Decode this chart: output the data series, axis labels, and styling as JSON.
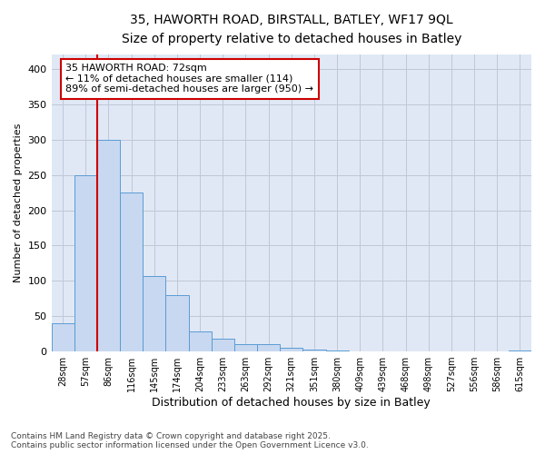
{
  "title_line1": "35, HAWORTH ROAD, BIRSTALL, BATLEY, WF17 9QL",
  "title_line2": "Size of property relative to detached houses in Batley",
  "xlabel": "Distribution of detached houses by size in Batley",
  "ylabel": "Number of detached properties",
  "categories": [
    "28sqm",
    "57sqm",
    "86sqm",
    "116sqm",
    "145sqm",
    "174sqm",
    "204sqm",
    "233sqm",
    "263sqm",
    "292sqm",
    "321sqm",
    "351sqm",
    "380sqm",
    "409sqm",
    "439sqm",
    "468sqm",
    "498sqm",
    "527sqm",
    "556sqm",
    "586sqm",
    "615sqm"
  ],
  "values": [
    40,
    250,
    300,
    225,
    107,
    80,
    28,
    18,
    11,
    10,
    5,
    3,
    2,
    0,
    0,
    0,
    0,
    0,
    0,
    0,
    2
  ],
  "bar_color": "#c8d8f0",
  "bar_edge_color": "#5b9bd5",
  "grid_color": "#c0c8d8",
  "background_color": "#e0e8f5",
  "vline_x": 1.5,
  "vline_color": "#cc0000",
  "annotation_text": "35 HAWORTH ROAD: 72sqm\n← 11% of detached houses are smaller (114)\n89% of semi-detached houses are larger (950) →",
  "annotation_box_color": "#ffffff",
  "annotation_box_edge": "#cc0000",
  "footnote": "Contains HM Land Registry data © Crown copyright and database right 2025.\nContains public sector information licensed under the Open Government Licence v3.0.",
  "ylim": [
    0,
    420
  ],
  "yticks": [
    0,
    50,
    100,
    150,
    200,
    250,
    300,
    350,
    400
  ]
}
